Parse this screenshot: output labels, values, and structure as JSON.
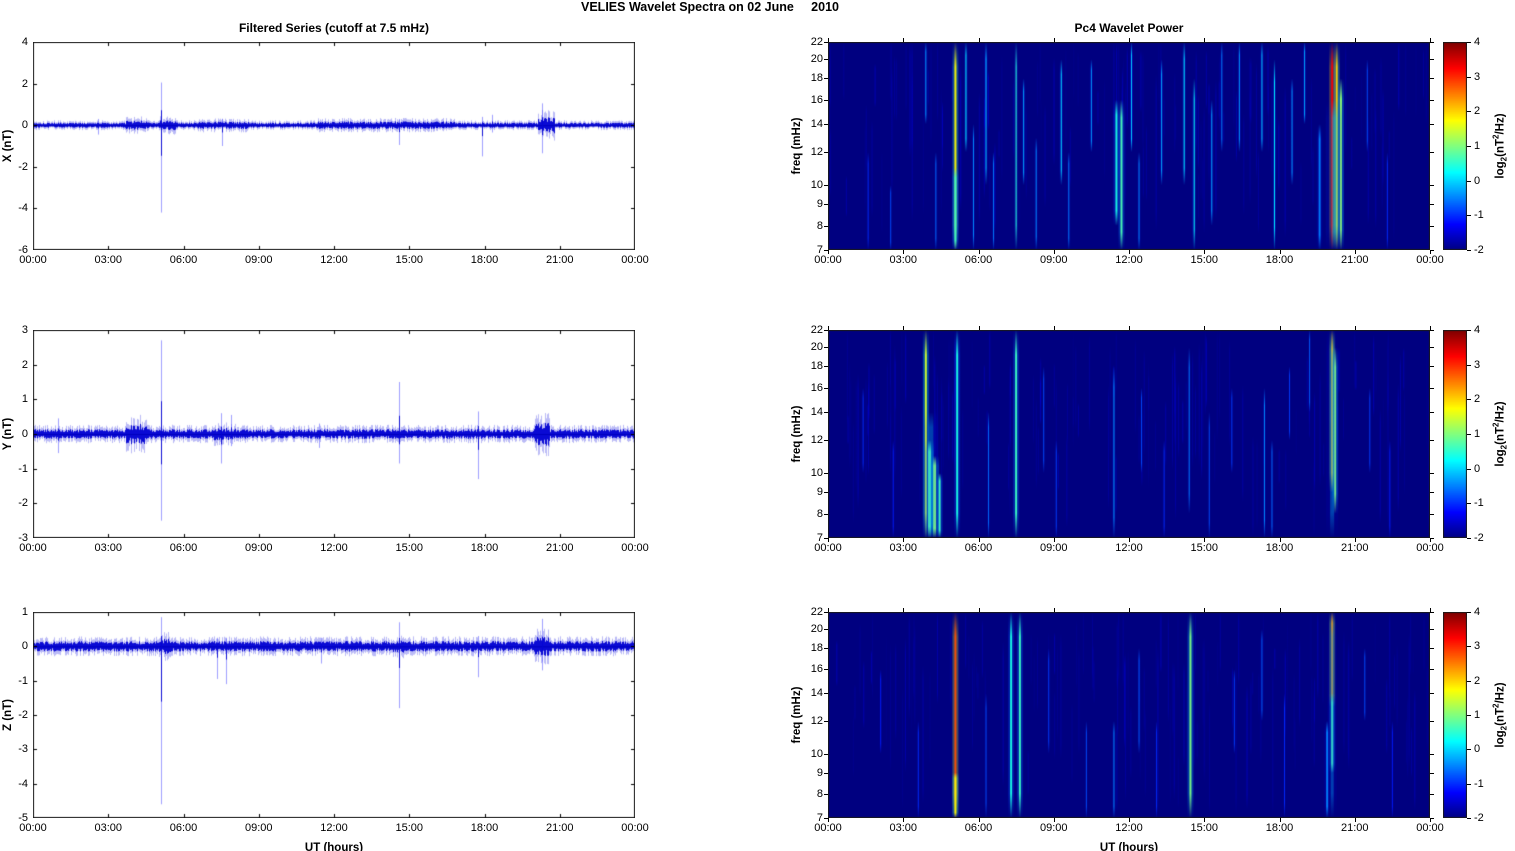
{
  "figure": {
    "title": "VELIES Wavelet Spectra on 02 June     2010"
  },
  "colors": {
    "series_line": "#0000e0",
    "spectrogram_background": "#000080",
    "axis": "#000000",
    "page_background": "#ffffff"
  },
  "chart_data": {
    "common": {
      "x_axis": {
        "label": "UT (hours)",
        "tick_hours": [
          0,
          3,
          6,
          9,
          12,
          15,
          18,
          21,
          24
        ],
        "tick_labels": [
          "00:00",
          "03:00",
          "06:00",
          "09:00",
          "12:00",
          "15:00",
          "18:00",
          "21:00",
          "00:00"
        ],
        "range_hours": [
          0,
          24
        ]
      },
      "freq_axis": {
        "label": "freq (mHz)",
        "ticks": [
          22,
          20,
          18,
          16,
          14,
          12,
          10,
          9,
          8,
          7
        ],
        "range": [
          7,
          22
        ],
        "scale": "log"
      },
      "colorbar": {
        "colormap": "jet",
        "range": [
          -2,
          4
        ],
        "ticks": [
          4,
          3,
          2,
          1,
          0,
          -1,
          -2
        ],
        "label": "log2(nT^2/Hz)",
        "label_parts": {
          "prefix": "log",
          "sub": "2",
          "open": "(nT",
          "sup": "2",
          "close": "/Hz)"
        }
      }
    },
    "series_panels": [
      {
        "id": "X",
        "type": "line",
        "title": "Filtered Series (cutoff at 7.5 mHz)",
        "ylabel": "X (nT)",
        "ylim": [
          -6,
          4
        ],
        "yticks": [
          4,
          2,
          0,
          -2,
          -4,
          -6
        ],
        "noise_amp": 0.09,
        "bursts": [
          [
            3.7,
            4.6,
            0.16
          ],
          [
            5.0,
            5.7,
            0.17
          ],
          [
            6.4,
            8.6,
            0.13
          ],
          [
            11.3,
            16.8,
            0.13
          ],
          [
            20.1,
            20.8,
            0.28
          ]
        ],
        "spikes": [
          [
            5.12,
            2.05,
            -4.2
          ],
          [
            2.6,
            0.3,
            -0.45
          ],
          [
            7.55,
            0.3,
            -1.0
          ],
          [
            14.6,
            0.3,
            -0.95
          ],
          [
            17.9,
            0.4,
            -1.5
          ],
          [
            18.3,
            0.5,
            -0.35
          ],
          [
            20.3,
            1.05,
            -1.35
          ]
        ]
      },
      {
        "id": "Y",
        "type": "line",
        "ylabel": "Y (nT)",
        "ylim": [
          -3,
          3
        ],
        "yticks": [
          3,
          2,
          1,
          0,
          -1,
          -2,
          -3
        ],
        "noise_amp": 0.1,
        "bursts": [
          [
            3.7,
            4.6,
            0.22
          ],
          [
            7.2,
            8.1,
            0.13
          ],
          [
            20.0,
            20.6,
            0.24
          ]
        ],
        "spikes": [
          [
            1.0,
            0.45,
            -0.55
          ],
          [
            5.12,
            2.7,
            -2.5
          ],
          [
            7.5,
            0.6,
            -0.85
          ],
          [
            7.9,
            0.55,
            -0.35
          ],
          [
            11.4,
            0.3,
            -0.4
          ],
          [
            14.6,
            1.5,
            -0.85
          ],
          [
            17.75,
            0.65,
            -1.3
          ]
        ]
      },
      {
        "id": "Z",
        "type": "line",
        "ylabel": "Z (nT)",
        "xlabel": "UT (hours)",
        "ylim": [
          -5,
          1
        ],
        "yticks": [
          1,
          0,
          -1,
          -2,
          -3,
          -4,
          -5
        ],
        "noise_amp": 0.11,
        "bursts": [
          [
            5.0,
            5.5,
            0.16
          ],
          [
            14.3,
            14.9,
            0.13
          ],
          [
            20.0,
            20.6,
            0.2
          ]
        ],
        "spikes": [
          [
            5.12,
            0.85,
            -4.6
          ],
          [
            7.35,
            0.25,
            -0.95
          ],
          [
            7.7,
            0.25,
            -1.1
          ],
          [
            11.5,
            0.25,
            -0.5
          ],
          [
            14.6,
            0.7,
            -1.8
          ],
          [
            17.75,
            0.3,
            -0.9
          ],
          [
            20.3,
            0.8,
            -0.7
          ]
        ]
      }
    ],
    "wavelet_panels": [
      {
        "id": "X",
        "type": "heatmap",
        "title": "Pc4 Wavelet Power",
        "events": [
          [
            5.08,
            1.8,
            7,
            22,
            2
          ],
          [
            5.08,
            0.6,
            7,
            11,
            2
          ],
          [
            20.1,
            3.3,
            7,
            22,
            2
          ],
          [
            20.28,
            2.0,
            7,
            22,
            2
          ],
          [
            20.45,
            1.1,
            7,
            18,
            2
          ],
          [
            20.2,
            0.2,
            7,
            16,
            6,
            0.35
          ],
          [
            19.6,
            -0.5,
            7,
            14,
            2
          ],
          [
            1.6,
            -1.0,
            7,
            12,
            1
          ],
          [
            2.5,
            -0.8,
            7,
            10,
            1
          ],
          [
            3.9,
            -0.3,
            14,
            22,
            1
          ],
          [
            4.3,
            -0.6,
            7,
            12,
            1
          ],
          [
            5.5,
            0.2,
            12,
            22,
            1
          ],
          [
            5.8,
            -0.4,
            7,
            14,
            1
          ],
          [
            6.3,
            0.0,
            10,
            22,
            1
          ],
          [
            6.6,
            -0.5,
            7,
            12,
            1
          ],
          [
            7.5,
            0.5,
            7,
            22,
            1
          ],
          [
            7.8,
            -0.2,
            10,
            18,
            1
          ],
          [
            8.3,
            -0.4,
            7,
            13,
            1
          ],
          [
            9.3,
            0.1,
            10,
            20,
            1
          ],
          [
            9.6,
            -0.5,
            7,
            12,
            1
          ],
          [
            10.5,
            -0.3,
            12,
            20,
            1
          ],
          [
            11.5,
            0.4,
            8,
            16,
            2
          ],
          [
            11.7,
            0.7,
            7,
            16,
            2
          ],
          [
            12.1,
            0.0,
            12,
            22,
            1
          ],
          [
            12.4,
            -0.4,
            7,
            12,
            1
          ],
          [
            13.3,
            -0.2,
            10,
            20,
            1
          ],
          [
            14.2,
            0.2,
            10,
            22,
            1
          ],
          [
            14.6,
            0.3,
            7,
            18,
            1
          ],
          [
            15.3,
            -0.2,
            8,
            16,
            1
          ],
          [
            15.7,
            -0.5,
            12,
            22,
            1
          ],
          [
            16.4,
            -0.3,
            12,
            22,
            1
          ],
          [
            17.3,
            0.0,
            12,
            22,
            1
          ],
          [
            17.8,
            0.2,
            7,
            20,
            1
          ],
          [
            18.5,
            -0.3,
            10,
            18,
            1
          ],
          [
            19.0,
            -0.2,
            14,
            22,
            1
          ],
          [
            21.5,
            -0.8,
            12,
            20,
            1
          ],
          [
            22.3,
            -1.0,
            7,
            12,
            1
          ]
        ]
      },
      {
        "id": "Y",
        "type": "heatmap",
        "events": [
          [
            3.9,
            1.5,
            7,
            22,
            2
          ],
          [
            4.05,
            0.8,
            7,
            12,
            3
          ],
          [
            4.25,
            1.0,
            7,
            11,
            3
          ],
          [
            4.45,
            0.6,
            7,
            10,
            2
          ],
          [
            4.1,
            0.0,
            7,
            14,
            5,
            0.3
          ],
          [
            5.15,
            0.4,
            7,
            22,
            2
          ],
          [
            7.5,
            0.6,
            7,
            22,
            2
          ],
          [
            20.1,
            2.2,
            9,
            22,
            2
          ],
          [
            20.22,
            1.0,
            8,
            20,
            2
          ],
          [
            20.1,
            0.0,
            7,
            22,
            4,
            0.3
          ],
          [
            1.4,
            -1.0,
            10,
            16,
            1
          ],
          [
            2.6,
            -1.1,
            7,
            12,
            1
          ],
          [
            6.4,
            -0.6,
            7,
            14,
            1
          ],
          [
            8.6,
            -0.8,
            10,
            18,
            1
          ],
          [
            9.1,
            -0.9,
            7,
            12,
            1
          ],
          [
            11.4,
            -0.3,
            7,
            18,
            1
          ],
          [
            12.5,
            -0.8,
            10,
            16,
            1
          ],
          [
            13.4,
            -1.0,
            7,
            12,
            1
          ],
          [
            14.4,
            -0.5,
            8,
            20,
            1
          ],
          [
            15.2,
            -0.8,
            7,
            14,
            1
          ],
          [
            16.1,
            -0.9,
            10,
            16,
            1
          ],
          [
            17.4,
            -0.4,
            7,
            16,
            1
          ],
          [
            17.7,
            -0.6,
            7,
            12,
            1
          ],
          [
            18.4,
            -0.9,
            12,
            18,
            1
          ],
          [
            19.2,
            -0.7,
            14,
            22,
            1
          ],
          [
            21.6,
            -0.9,
            10,
            16,
            1
          ],
          [
            22.4,
            -1.1,
            7,
            12,
            1
          ]
        ]
      },
      {
        "id": "Z",
        "type": "heatmap",
        "xlabel": "UT (hours)",
        "events": [
          [
            5.08,
            2.8,
            7,
            22,
            2
          ],
          [
            5.08,
            1.8,
            7,
            9,
            2
          ],
          [
            7.3,
            0.4,
            7,
            22,
            2
          ],
          [
            7.65,
            0.6,
            7,
            22,
            2
          ],
          [
            14.45,
            1.0,
            7,
            22,
            2
          ],
          [
            20.1,
            2.4,
            13,
            22,
            2
          ],
          [
            20.1,
            0.8,
            9,
            14,
            2
          ],
          [
            20.1,
            -0.2,
            7,
            22,
            3,
            0.35
          ],
          [
            19.9,
            -0.5,
            7,
            12,
            2
          ],
          [
            2.1,
            -1.1,
            10,
            16,
            1
          ],
          [
            3.6,
            -1.0,
            7,
            12,
            1
          ],
          [
            6.3,
            -0.8,
            7,
            14,
            1
          ],
          [
            8.8,
            -0.9,
            10,
            18,
            1
          ],
          [
            10.3,
            -0.8,
            7,
            12,
            1
          ],
          [
            11.4,
            -0.4,
            7,
            12,
            1
          ],
          [
            12.4,
            -0.7,
            10,
            18,
            1
          ],
          [
            13.1,
            -1.0,
            7,
            12,
            1
          ],
          [
            16.2,
            -0.9,
            10,
            16,
            1
          ],
          [
            17.3,
            -0.7,
            12,
            20,
            1
          ],
          [
            18.2,
            -1.0,
            7,
            14,
            1
          ],
          [
            21.4,
            -0.8,
            12,
            18,
            1
          ],
          [
            22.5,
            -1.1,
            7,
            12,
            1
          ]
        ]
      }
    ]
  }
}
